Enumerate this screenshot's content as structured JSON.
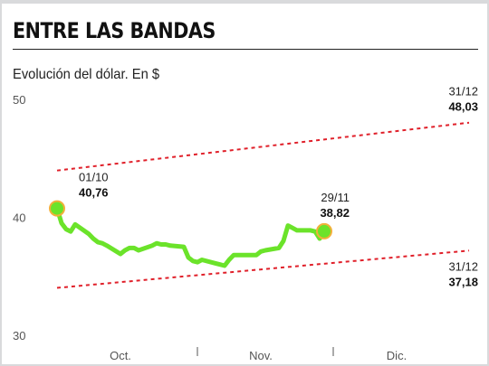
{
  "title": "ENTRE LAS BANDAS",
  "subtitle": "Evolución del dólar. En $",
  "colors": {
    "line": "#6be32a",
    "band": "#e0202a",
    "marker": "#f2b03a",
    "background": "#d9dadc"
  },
  "chart_data": {
    "type": "line",
    "title": "ENTRE LAS BANDAS",
    "subtitle": "Evolución del dólar. En $",
    "x_type": "date",
    "xlim": [
      "2018-09-24",
      "2018-12-31"
    ],
    "ylim": [
      30,
      50
    ],
    "y_ticks": [
      30,
      40,
      50
    ],
    "y_tick_labels": [
      "30",
      "40",
      "50"
    ],
    "x_tick_labels": [
      {
        "label": "Oct.",
        "x": "2018-10-15"
      },
      {
        "label": "Nov.",
        "x": "2018-11-15"
      },
      {
        "label": "Dic.",
        "x": "2018-12-15"
      }
    ],
    "month_separators": [
      "2018-11-01",
      "2018-12-01"
    ],
    "grid": false,
    "series": [
      {
        "role": "dollar",
        "points": [
          [
            "2018-10-01",
            40.76
          ],
          [
            "2018-10-02",
            39.5
          ],
          [
            "2018-10-03",
            39.0
          ],
          [
            "2018-10-04",
            38.8
          ],
          [
            "2018-10-05",
            39.4
          ],
          [
            "2018-10-08",
            38.6
          ],
          [
            "2018-10-09",
            38.2
          ],
          [
            "2018-10-10",
            37.9
          ],
          [
            "2018-10-11",
            37.8
          ],
          [
            "2018-10-12",
            37.6
          ],
          [
            "2018-10-15",
            36.9
          ],
          [
            "2018-10-16",
            37.2
          ],
          [
            "2018-10-17",
            37.4
          ],
          [
            "2018-10-18",
            37.4
          ],
          [
            "2018-10-19",
            37.2
          ],
          [
            "2018-10-22",
            37.6
          ],
          [
            "2018-10-23",
            37.8
          ],
          [
            "2018-10-24",
            37.7
          ],
          [
            "2018-10-25",
            37.7
          ],
          [
            "2018-10-26",
            37.6
          ],
          [
            "2018-10-29",
            37.5
          ],
          [
            "2018-10-30",
            36.6
          ],
          [
            "2018-10-31",
            36.3
          ],
          [
            "2018-11-01",
            36.2
          ],
          [
            "2018-11-02",
            36.4
          ],
          [
            "2018-11-05",
            36.1
          ],
          [
            "2018-11-06",
            36.0
          ],
          [
            "2018-11-07",
            35.9
          ],
          [
            "2018-11-08",
            36.4
          ],
          [
            "2018-11-09",
            36.8
          ],
          [
            "2018-11-12",
            36.8
          ],
          [
            "2018-11-13",
            36.8
          ],
          [
            "2018-11-14",
            36.8
          ],
          [
            "2018-11-15",
            37.1
          ],
          [
            "2018-11-16",
            37.2
          ],
          [
            "2018-11-19",
            37.4
          ],
          [
            "2018-11-20",
            38.0
          ],
          [
            "2018-11-21",
            39.3
          ],
          [
            "2018-11-22",
            39.1
          ],
          [
            "2018-11-23",
            38.9
          ],
          [
            "2018-11-26",
            38.9
          ],
          [
            "2018-11-27",
            38.8
          ],
          [
            "2018-11-28",
            38.2
          ],
          [
            "2018-11-29",
            38.82
          ]
        ]
      },
      {
        "role": "upper-band",
        "style": "dashed",
        "points": [
          [
            "2018-10-01",
            43.97
          ],
          [
            "2018-12-31",
            48.03
          ]
        ]
      },
      {
        "role": "lower-band",
        "style": "dashed",
        "points": [
          [
            "2018-10-01",
            34.02
          ],
          [
            "2018-12-31",
            37.18
          ]
        ]
      }
    ],
    "annotations": [
      {
        "date": "01/10",
        "value": "40,76",
        "x": "2018-10-01",
        "y": 40.76,
        "marker": true,
        "placement": "above-right"
      },
      {
        "date": "29/11",
        "value": "38,82",
        "x": "2018-11-29",
        "y": 38.82,
        "marker": true,
        "placement": "above"
      },
      {
        "date": "31/12",
        "value": "48,03",
        "x": "2018-12-31",
        "y": 48.03,
        "marker": false,
        "placement": "above-end"
      },
      {
        "date": "31/12",
        "value": "37,18",
        "x": "2018-12-31",
        "y": 37.18,
        "marker": false,
        "placement": "below-end"
      }
    ]
  }
}
